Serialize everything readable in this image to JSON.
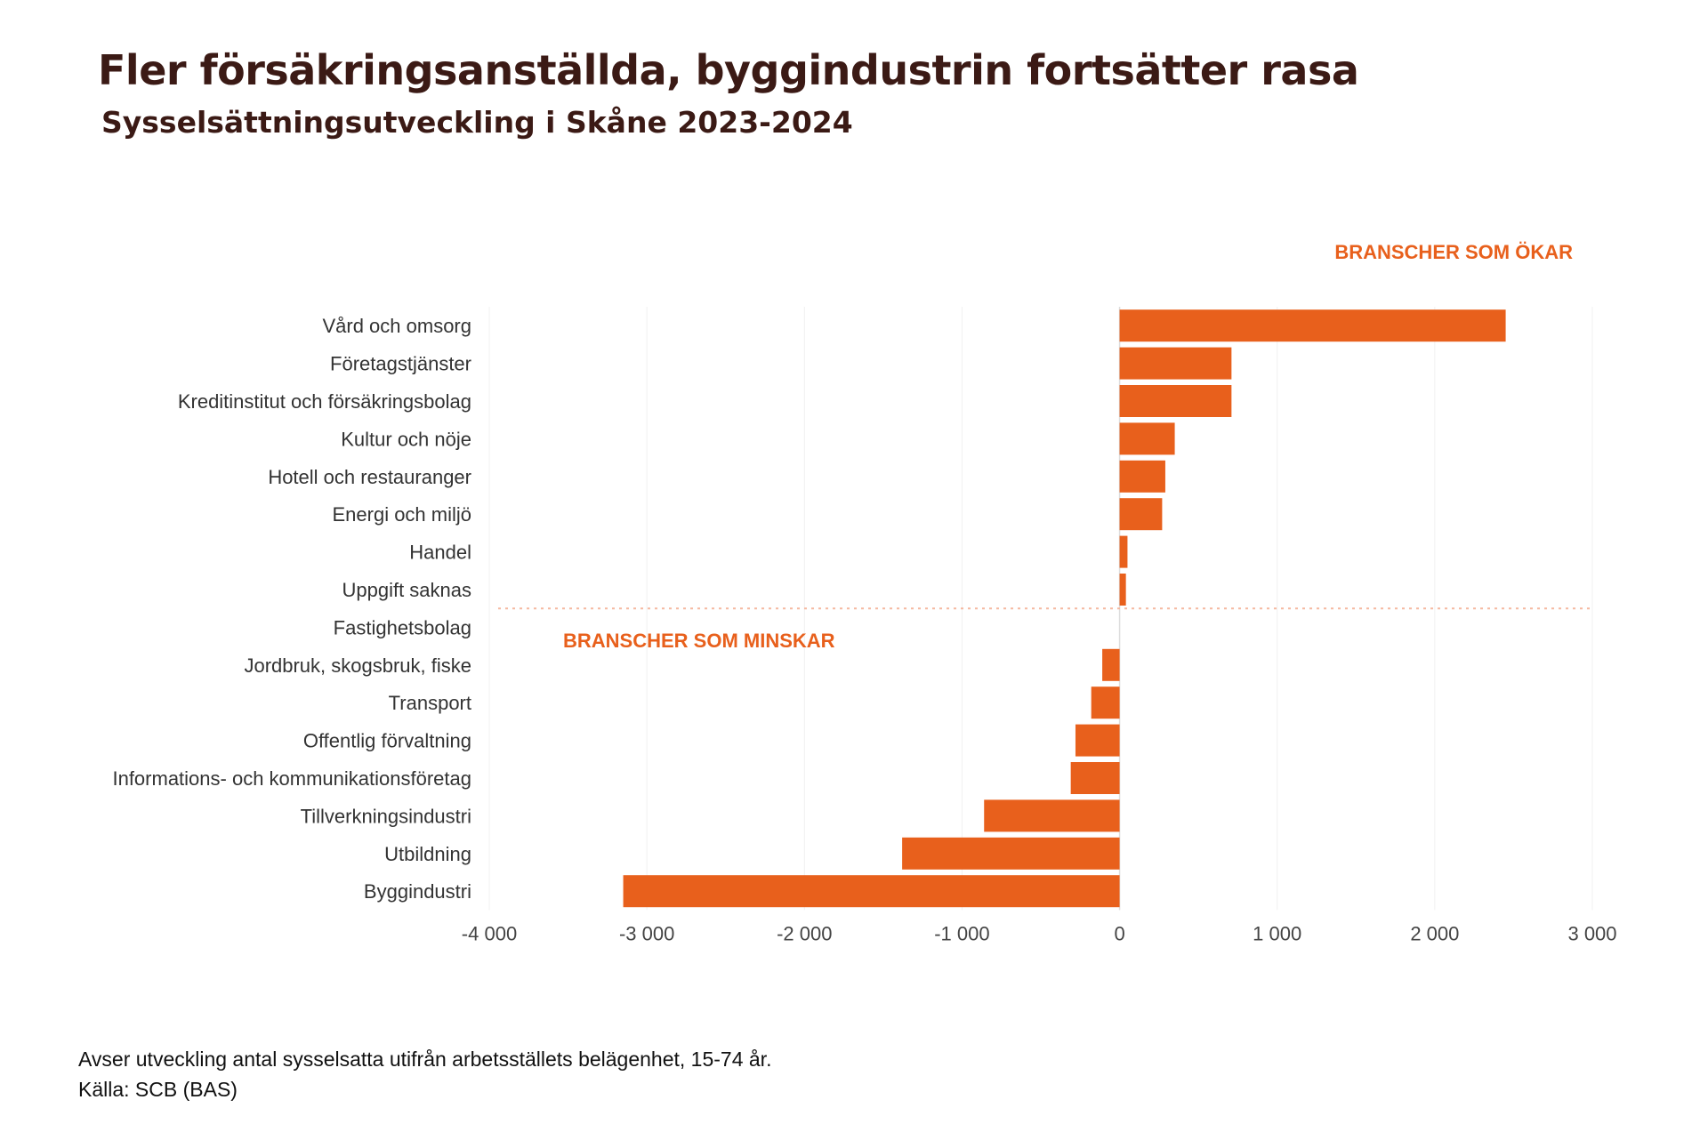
{
  "title": "Fler försäkringsanställda, byggindustrin fortsätter rasa",
  "subtitle": "Sysselsättningsutveckling i Skåne 2023-2024",
  "annotations": {
    "increase": "BRANSCHER SOM ÖKAR",
    "decrease": "BRANSCHER SOM MINSKAR"
  },
  "footnote": {
    "line1": "Avser utveckling antal sysselsatta utifrån arbetsställets belägenhet, 15-74 år.",
    "line2": "Källa: SCB (BAS)"
  },
  "colors": {
    "bar": "#e8601c",
    "annotation": "#e8601c",
    "title": "#3b1a15",
    "divider": "#f5b8a0"
  },
  "chart_data": {
    "type": "bar",
    "orientation": "horizontal",
    "categories": [
      "Vård och omsorg",
      "Företagstjänster",
      "Kreditinstitut och försäkringsbolag",
      "Kultur och nöje",
      "Hotell och restauranger",
      "Energi och miljö",
      "Handel",
      "Uppgift saknas",
      "Fastighetsbolag",
      "Jordbruk, skogsbruk, fiske",
      "Transport",
      "Offentlig förvaltning",
      "Informations- och kommunikationsföretag",
      "Tillverkningsindustri",
      "Utbildning",
      "Byggindustri"
    ],
    "values": [
      2450,
      710,
      710,
      350,
      290,
      270,
      50,
      40,
      0,
      -110,
      -180,
      -280,
      -310,
      -860,
      -1380,
      -3150
    ],
    "xlim": [
      -4000,
      3000
    ],
    "xticks": [
      -4000,
      -3000,
      -2000,
      -1000,
      0,
      1000,
      2000,
      3000
    ],
    "xtick_labels": [
      "-4 000",
      "-3 000",
      "-2 000",
      "-1 000",
      "0",
      "1 000",
      "2 000",
      "3 000"
    ],
    "grid": true,
    "divider_after_index": 7
  }
}
